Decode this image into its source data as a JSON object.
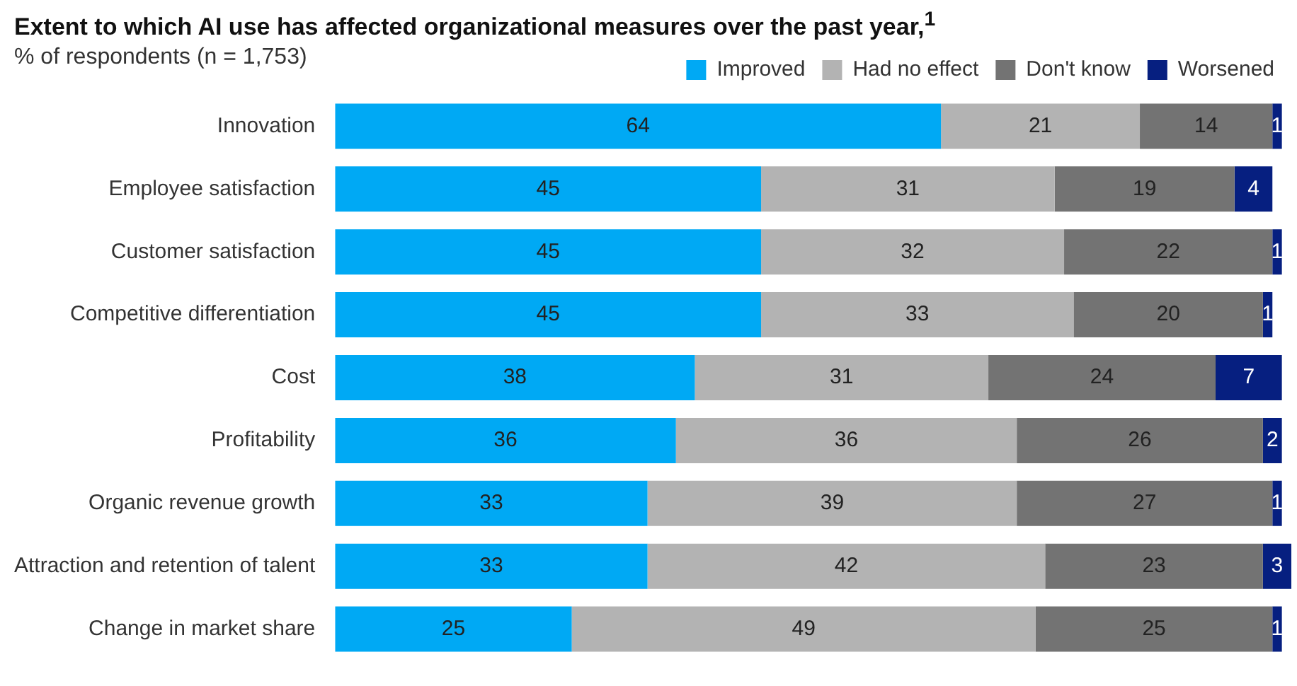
{
  "chart_data": {
    "type": "bar",
    "orientation": "horizontal",
    "stacked": true,
    "title": "Extent to which AI use has affected organizational measures over the past year,$^{1}$",
    "subtitle": "% of respondents (n = 1,753)",
    "categories": [
      "Innovation",
      "Employee satisfaction",
      "Customer satisfaction",
      "Competitive differentiation",
      "Cost",
      "Profitability",
      "Organic revenue growth",
      "Attraction and retention of talent",
      "Change in market share"
    ],
    "series": [
      {
        "name": "Improved",
        "color": "#00a9f4",
        "values": [
          64,
          45,
          45,
          45,
          38,
          36,
          33,
          33,
          25
        ]
      },
      {
        "name": "Had no effect",
        "color": "#b3b3b3",
        "values": [
          21,
          31,
          32,
          33,
          31,
          36,
          39,
          42,
          49
        ]
      },
      {
        "name": "Don't know",
        "color": "#737373",
        "values": [
          14,
          19,
          22,
          20,
          24,
          26,
          27,
          23,
          25
        ]
      },
      {
        "name": "Worsened",
        "color": "#061f80",
        "values": [
          1,
          4,
          1,
          1,
          7,
          2,
          1,
          3,
          1
        ]
      }
    ],
    "data_labels": true,
    "legend": "top right"
  }
}
